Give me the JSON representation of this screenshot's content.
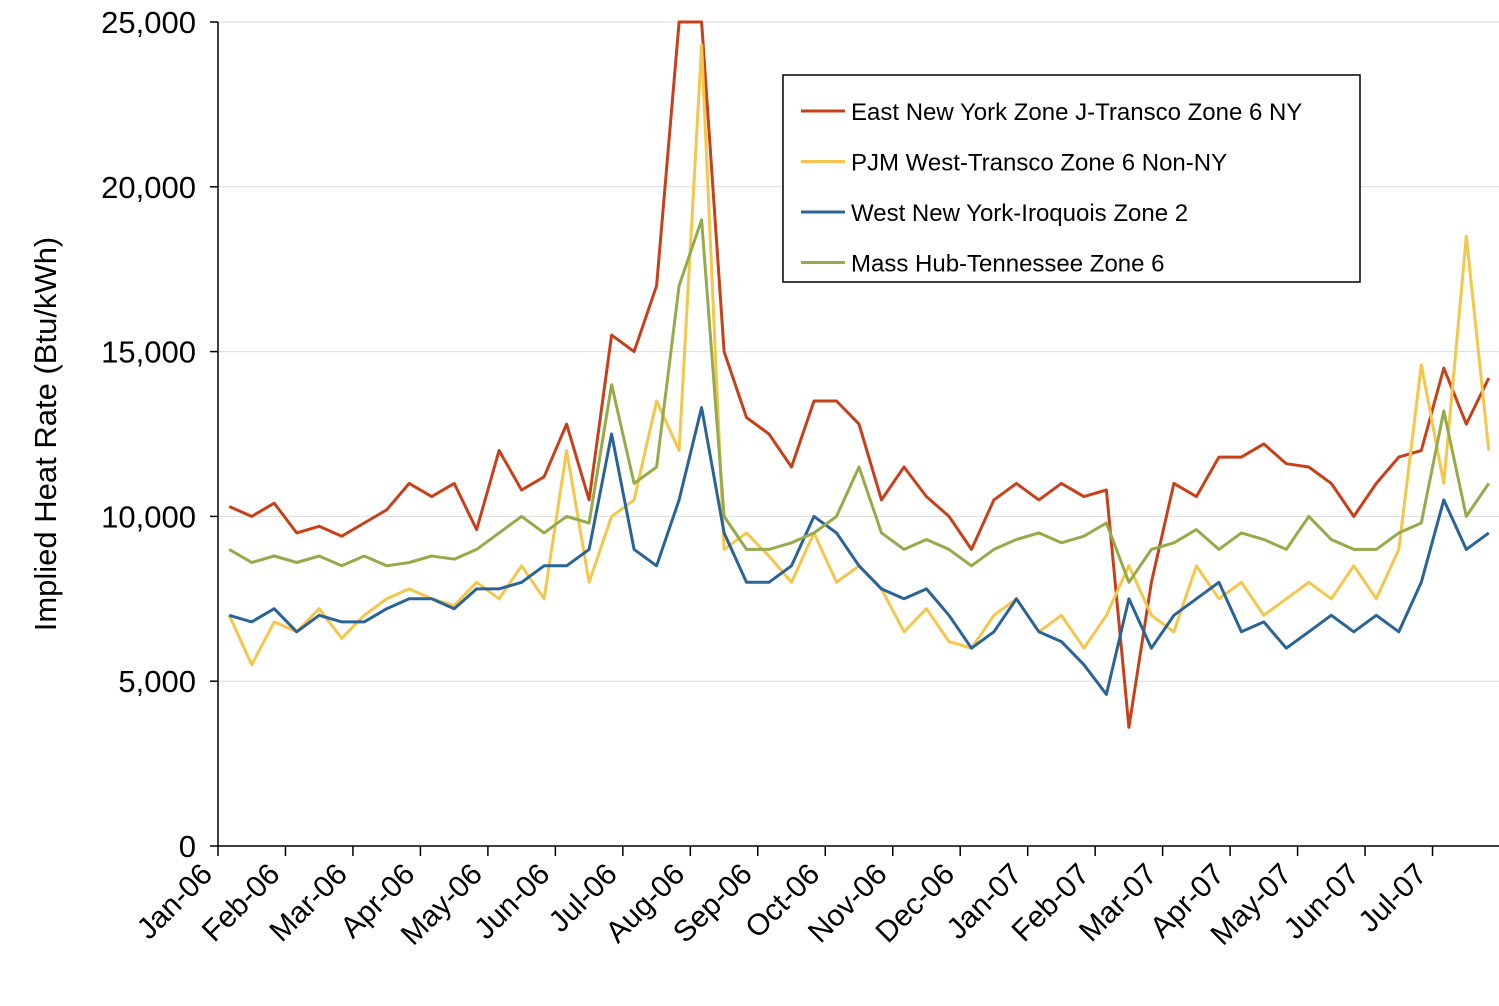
{
  "chart_data": {
    "type": "line",
    "y_label": "Implied Heat Rate (Btu/kWh)",
    "categories": [
      "Jan-06",
      null,
      null,
      "Feb-06",
      null,
      null,
      "Mar-06",
      null,
      null,
      "Apr-06",
      null,
      null,
      "May-06",
      null,
      null,
      "Jun-06",
      null,
      null,
      "Jul-06",
      null,
      null,
      "Aug-06",
      null,
      null,
      "Sep-06",
      null,
      null,
      "Oct-06",
      null,
      null,
      "Nov-06",
      null,
      null,
      "Dec-06",
      null,
      null,
      "Jan-07",
      null,
      null,
      "Feb-07",
      null,
      null,
      "Mar-07",
      null,
      null,
      "Apr-07",
      null,
      null,
      "May-07",
      null,
      null,
      "Jun-07",
      null,
      null,
      "Jul-07",
      null,
      null
    ],
    "series": [
      {
        "name": "East New York Zone J-Transco Zone 6 NY",
        "color": "#c8401a",
        "values": [
          10300,
          10000,
          10400,
          9500,
          9700,
          9400,
          9800,
          10200,
          11000,
          10600,
          11000,
          9600,
          12000,
          10800,
          11200,
          12800,
          10500,
          15500,
          15000,
          17000,
          25000,
          25000,
          15000,
          13000,
          12500,
          11500,
          13500,
          13500,
          12800,
          10500,
          11500,
          10600,
          10000,
          9000,
          10500,
          11000,
          10500,
          11000,
          10600,
          10800,
          3600,
          8000,
          11000,
          10600,
          11800,
          11800,
          12200,
          11600,
          11500,
          11000,
          10000,
          11000,
          11800,
          12000,
          14500,
          12800,
          14200
        ]
      },
      {
        "name": "PJM West-Transco Zone 6 Non-NY",
        "color": "#f5c64a",
        "values": [
          7000,
          5500,
          6800,
          6500,
          7200,
          6300,
          7000,
          7500,
          7800,
          7500,
          7300,
          8000,
          7500,
          8500,
          7500,
          12000,
          8000,
          10000,
          10500,
          13500,
          12000,
          24300,
          9000,
          9500,
          8800,
          8000,
          9500,
          8000,
          8500,
          7800,
          6500,
          7200,
          6200,
          6000,
          7000,
          7500,
          6500,
          7000,
          6000,
          7000,
          8500,
          7000,
          6500,
          8500,
          7500,
          8000,
          7000,
          7500,
          8000,
          7500,
          8500,
          7500,
          9000,
          14600,
          11000,
          18500,
          12000
        ]
      },
      {
        "name": "West New York-Iroquois Zone 2",
        "color": "#2a6496",
        "values": [
          7000,
          6800,
          7200,
          6500,
          7000,
          6800,
          6800,
          7200,
          7500,
          7500,
          7200,
          7800,
          7800,
          8000,
          8500,
          8500,
          9000,
          12500,
          9000,
          8500,
          10500,
          13300,
          9500,
          8000,
          8000,
          8500,
          10000,
          9500,
          8500,
          7800,
          7500,
          7800,
          7000,
          6000,
          6500,
          7500,
          6500,
          6200,
          5500,
          4600,
          7500,
          6000,
          7000,
          7500,
          8000,
          6500,
          6800,
          6000,
          6500,
          7000,
          6500,
          7000,
          6500,
          8000,
          10500,
          9000,
          9500
        ]
      },
      {
        "name": "Mass Hub-Tennessee Zone 6",
        "color": "#95ab4a",
        "values": [
          9000,
          8600,
          8800,
          8600,
          8800,
          8500,
          8800,
          8500,
          8600,
          8800,
          8700,
          9000,
          9500,
          10000,
          9500,
          10000,
          9800,
          14000,
          11000,
          11500,
          17000,
          19000,
          10000,
          9000,
          9000,
          9200,
          9500,
          10000,
          11500,
          9500,
          9000,
          9300,
          9000,
          8500,
          9000,
          9300,
          9500,
          9200,
          9400,
          9800,
          8000,
          9000,
          9200,
          9600,
          9000,
          9500,
          9300,
          9000,
          10000,
          9300,
          9000,
          9000,
          9500,
          9800,
          13200,
          10000,
          11000
        ]
      }
    ],
    "ylim": [
      0,
      25000
    ],
    "yticks": [
      0,
      {
        "value": 5000,
        "label": "5,000"
      },
      {
        "value": 10000,
        "label": "10,000"
      },
      {
        "value": 15000,
        "label": "15,000"
      },
      {
        "value": 20000,
        "label": "20,000"
      },
      {
        "value": 25000,
        "label": "25,000"
      }
    ],
    "grid": true,
    "legend": "upper right"
  }
}
